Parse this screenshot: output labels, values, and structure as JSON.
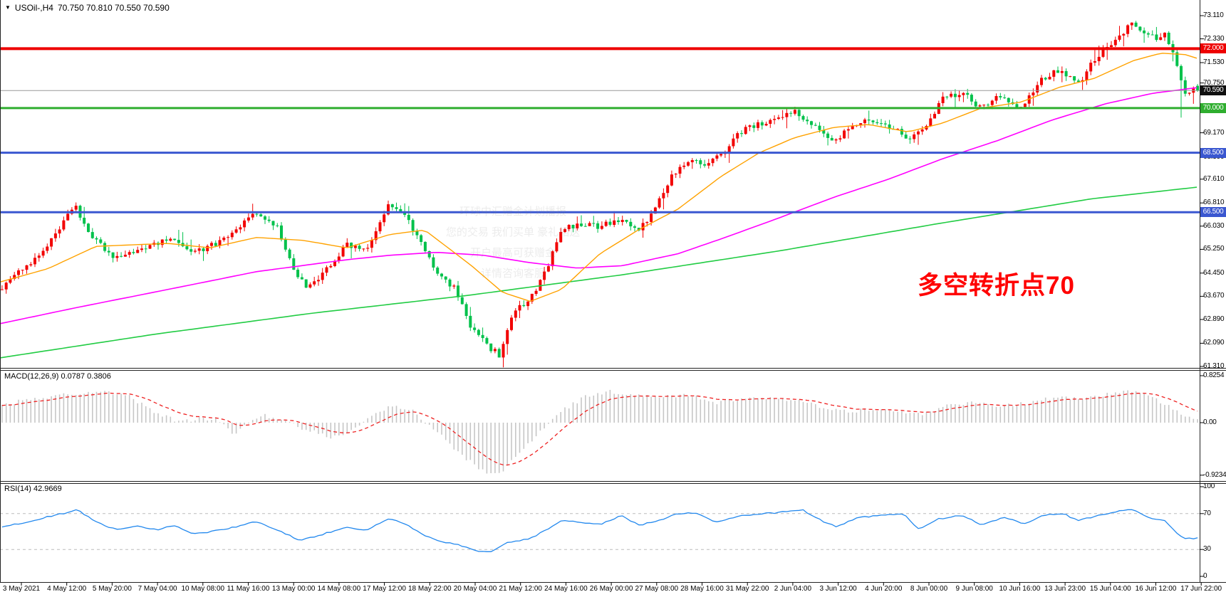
{
  "window": {
    "dropdown_icon": "▼",
    "symbol_period": "USOil-,H4",
    "ohlc_line": "70.750 70.810 70.550 70.590"
  },
  "colors": {
    "bull": "#f20000",
    "bear": "#00c14b",
    "ma_fast": "#ffa200",
    "ma_mid": "#ff00ff",
    "ma_slow": "#22cc44",
    "hline_red": "#ee0000",
    "hline_green": "#2fae2f",
    "hline_blue": "#3a57d0",
    "current_line": "#999999",
    "macd_bar": "#c6c6c6",
    "macd_signal": "#ee2222",
    "rsi_line": "#2288ee",
    "rsi_level": "#bbbbbb",
    "badge_red": "#ee0000",
    "badge_black": "#101010",
    "badge_green": "#2fae2f",
    "badge_blue": "#3a57d0",
    "annotation_red": "#ff0000",
    "axis_text": "#000000",
    "frame": "#222222"
  },
  "main_chart": {
    "price_ticks": [
      {
        "t": "73.110"
      },
      {
        "t": "72.330"
      },
      {
        "t": "71.530"
      },
      {
        "t": "70.750",
        "dy": -4
      },
      {
        "t": "69.170"
      },
      {
        "t": "68.390",
        "dy": 2
      },
      {
        "t": "67.610"
      },
      {
        "t": "66.810"
      },
      {
        "t": "66.030"
      },
      {
        "t": "65.250"
      },
      {
        "t": "64.450"
      },
      {
        "t": "63.670"
      },
      {
        "t": "62.890"
      },
      {
        "t": "62.090"
      },
      {
        "t": "61.310"
      }
    ],
    "hlines": [
      {
        "price": 72.0,
        "color_key": "hline_red",
        "width": 4,
        "badge": "72.000",
        "badge_key": "badge_red"
      },
      {
        "price": 70.0,
        "color_key": "hline_green",
        "width": 3,
        "badge": "70.000",
        "badge_key": "badge_green"
      },
      {
        "price": 68.5,
        "color_key": "hline_blue",
        "width": 3,
        "badge": "68.500",
        "badge_key": "badge_blue"
      },
      {
        "price": 66.5,
        "color_key": "hline_blue",
        "width": 3,
        "badge": "66.500",
        "badge_key": "badge_blue"
      }
    ],
    "current_price": {
      "price": 70.59,
      "badge": "70.590",
      "badge_key": "badge_black"
    }
  },
  "macd_panel": {
    "label": "MACD(12,26,9) 0.0787 0.3806",
    "ticks": [
      {
        "label": "0.8254",
        "value": 0.8254
      },
      {
        "label": "0.00",
        "value": 0
      },
      {
        "label": "-0.9234",
        "value": -0.9234
      }
    ]
  },
  "rsi_panel": {
    "label": "RSI(14) 42.9669",
    "ticks": [
      {
        "label": "100",
        "value": 100
      },
      {
        "label": "70",
        "value": 70
      },
      {
        "label": "30",
        "value": 30
      },
      {
        "label": "0",
        "value": 0
      }
    ],
    "level_lines": [
      70,
      30
    ]
  },
  "x_axis": {
    "labels": [
      "3 May 2021",
      "4 May 12:00",
      "5 May 20:00",
      "7 May 04:00",
      "10 May 08:00",
      "11 May 16:00",
      "13 May 00:00",
      "14 May 08:00",
      "17 May 12:00",
      "18 May 22:00",
      "20 May 04:00",
      "21 May 12:00",
      "24 May 16:00",
      "26 May 00:00",
      "27 May 08:00",
      "28 May 16:00",
      "31 May 22:00",
      "2 Jun 04:00",
      "3 Jun 12:00",
      "4 Jun 20:00",
      "8 Jun 00:00",
      "9 Jun 08:00",
      "10 Jun 16:00",
      "13 Jun 23:00",
      "15 Jun 04:00",
      "16 Jun 12:00",
      "17 Jun 22:00"
    ]
  },
  "annotation": {
    "text": "多空转折点70"
  },
  "watermark": {
    "lines": [
      "环球中汇赠金计划播报",
      "您的交易 我们买单 豪礼相送",
      "开户最高可获赠金",
      "详情咨询客服"
    ]
  },
  "chart_data": [
    {
      "type": "candlestick",
      "symbol": "USOil-",
      "timeframe": "H4",
      "title": "USOil-,H4 70.750 70.810 70.550 70.590",
      "ylim": [
        61.31,
        73.11
      ],
      "x_range": [
        "3 May 2021",
        "17 Jun 22:00"
      ],
      "grid": false,
      "up_color_convention": "red-up-green-down",
      "last_ohlc": {
        "open": 70.75,
        "high": 70.81,
        "low": 70.55,
        "close": 70.59
      },
      "horizontal_levels": [
        72.0,
        70.0,
        68.5,
        66.5
      ],
      "current_price_level": 70.59,
      "spikes": [
        {
          "frac": 0.984,
          "low": 69.68
        }
      ],
      "close_path": [
        [
          0,
          63.9
        ],
        [
          0.019,
          64.6
        ],
        [
          0.039,
          65.3
        ],
        [
          0.062,
          66.75
        ],
        [
          0.078,
          65.6
        ],
        [
          0.097,
          64.95
        ],
        [
          0.12,
          65.3
        ],
        [
          0.14,
          65.6
        ],
        [
          0.159,
          65.15
        ],
        [
          0.175,
          65.35
        ],
        [
          0.195,
          65.8
        ],
        [
          0.214,
          66.5
        ],
        [
          0.231,
          66.0
        ],
        [
          0.244,
          64.6
        ],
        [
          0.256,
          63.9
        ],
        [
          0.273,
          64.6
        ],
        [
          0.289,
          65.4
        ],
        [
          0.305,
          65.25
        ],
        [
          0.325,
          66.8
        ],
        [
          0.338,
          66.4
        ],
        [
          0.354,
          65.2
        ],
        [
          0.367,
          64.3
        ],
        [
          0.38,
          63.9
        ],
        [
          0.393,
          62.6
        ],
        [
          0.406,
          62.0
        ],
        [
          0.416,
          61.7
        ],
        [
          0.429,
          63.2
        ],
        [
          0.442,
          63.6
        ],
        [
          0.455,
          64.5
        ],
        [
          0.468,
          65.9
        ],
        [
          0.484,
          66.1
        ],
        [
          0.5,
          66.0
        ],
        [
          0.519,
          66.3
        ],
        [
          0.532,
          65.9
        ],
        [
          0.545,
          66.5
        ],
        [
          0.558,
          67.6
        ],
        [
          0.575,
          68.3
        ],
        [
          0.588,
          68.15
        ],
        [
          0.601,
          68.4
        ],
        [
          0.617,
          69.2
        ],
        [
          0.633,
          69.5
        ],
        [
          0.649,
          69.6
        ],
        [
          0.662,
          69.9
        ],
        [
          0.679,
          69.4
        ],
        [
          0.695,
          68.9
        ],
        [
          0.708,
          69.3
        ],
        [
          0.724,
          69.6
        ],
        [
          0.74,
          69.4
        ],
        [
          0.757,
          69.0
        ],
        [
          0.769,
          69.3
        ],
        [
          0.786,
          70.3
        ],
        [
          0.802,
          70.5
        ],
        [
          0.818,
          70.0
        ],
        [
          0.834,
          70.4
        ],
        [
          0.851,
          70.05
        ],
        [
          0.867,
          70.9
        ],
        [
          0.883,
          71.3
        ],
        [
          0.899,
          70.8
        ],
        [
          0.912,
          71.6
        ],
        [
          0.929,
          72.3
        ],
        [
          0.945,
          72.9
        ],
        [
          0.954,
          72.55
        ],
        [
          0.964,
          72.35
        ],
        [
          0.971,
          72.5
        ],
        [
          0.981,
          71.5
        ],
        [
          0.988,
          70.5
        ],
        [
          0.995,
          70.59
        ],
        [
          1,
          70.59
        ]
      ],
      "ma_fast_orange": [
        [
          0,
          64.15
        ],
        [
          0.04,
          64.6
        ],
        [
          0.08,
          65.35
        ],
        [
          0.14,
          65.45
        ],
        [
          0.175,
          65.3
        ],
        [
          0.214,
          65.65
        ],
        [
          0.253,
          65.55
        ],
        [
          0.289,
          65.3
        ],
        [
          0.325,
          65.75
        ],
        [
          0.354,
          65.9
        ],
        [
          0.393,
          64.7
        ],
        [
          0.419,
          63.8
        ],
        [
          0.442,
          63.5
        ],
        [
          0.468,
          63.9
        ],
        [
          0.5,
          65.1
        ],
        [
          0.532,
          65.9
        ],
        [
          0.565,
          66.6
        ],
        [
          0.601,
          67.7
        ],
        [
          0.633,
          68.5
        ],
        [
          0.662,
          69.0
        ],
        [
          0.695,
          69.35
        ],
        [
          0.724,
          69.45
        ],
        [
          0.757,
          69.2
        ],
        [
          0.786,
          69.5
        ],
        [
          0.818,
          70.0
        ],
        [
          0.851,
          70.2
        ],
        [
          0.883,
          70.7
        ],
        [
          0.912,
          71.0
        ],
        [
          0.945,
          71.6
        ],
        [
          0.968,
          71.85
        ],
        [
          0.988,
          71.8
        ],
        [
          1,
          71.65
        ]
      ],
      "ma_mid_magenta": [
        [
          0,
          62.75
        ],
        [
          0.065,
          63.3
        ],
        [
          0.14,
          63.9
        ],
        [
          0.214,
          64.5
        ],
        [
          0.289,
          64.9
        ],
        [
          0.325,
          65.05
        ],
        [
          0.364,
          65.15
        ],
        [
          0.403,
          65.05
        ],
        [
          0.442,
          64.8
        ],
        [
          0.481,
          64.62
        ],
        [
          0.519,
          64.7
        ],
        [
          0.565,
          65.1
        ],
        [
          0.601,
          65.6
        ],
        [
          0.649,
          66.3
        ],
        [
          0.695,
          67.0
        ],
        [
          0.74,
          67.6
        ],
        [
          0.786,
          68.3
        ],
        [
          0.831,
          68.9
        ],
        [
          0.877,
          69.6
        ],
        [
          0.922,
          70.15
        ],
        [
          0.961,
          70.5
        ],
        [
          1,
          70.7
        ]
      ],
      "ma_slow_green": [
        [
          0,
          61.6
        ],
        [
          0.13,
          62.4
        ],
        [
          0.26,
          63.1
        ],
        [
          0.39,
          63.7
        ],
        [
          0.52,
          64.4
        ],
        [
          0.65,
          65.2
        ],
        [
          0.78,
          66.1
        ],
        [
          0.91,
          66.95
        ],
        [
          1,
          67.35
        ]
      ]
    },
    {
      "type": "bar",
      "name": "MACD(12,26,9)",
      "current_macd": 0.0787,
      "current_signal": 0.3806,
      "ylim": [
        -0.9234,
        0.8254
      ],
      "values_path": [
        [
          0,
          0.3
        ],
        [
          0.026,
          0.42
        ],
        [
          0.058,
          0.5
        ],
        [
          0.084,
          0.55
        ],
        [
          0.104,
          0.5
        ],
        [
          0.13,
          0.18
        ],
        [
          0.149,
          0.02
        ],
        [
          0.169,
          0.08
        ],
        [
          0.185,
          0.02
        ],
        [
          0.195,
          -0.2
        ],
        [
          0.205,
          -0.05
        ],
        [
          0.218,
          0.15
        ],
        [
          0.234,
          0.05
        ],
        [
          0.253,
          -0.1
        ],
        [
          0.276,
          -0.26
        ],
        [
          0.295,
          -0.12
        ],
        [
          0.312,
          0.15
        ],
        [
          0.328,
          0.32
        ],
        [
          0.344,
          0.2
        ],
        [
          0.364,
          -0.15
        ],
        [
          0.383,
          -0.55
        ],
        [
          0.403,
          -0.85
        ],
        [
          0.416,
          -0.92
        ],
        [
          0.432,
          -0.55
        ],
        [
          0.451,
          -0.15
        ],
        [
          0.468,
          0.2
        ],
        [
          0.487,
          0.45
        ],
        [
          0.506,
          0.55
        ],
        [
          0.529,
          0.5
        ],
        [
          0.552,
          0.45
        ],
        [
          0.575,
          0.48
        ],
        [
          0.597,
          0.35
        ],
        [
          0.62,
          0.42
        ],
        [
          0.643,
          0.45
        ],
        [
          0.662,
          0.4
        ],
        [
          0.685,
          0.28
        ],
        [
          0.708,
          0.18
        ],
        [
          0.727,
          0.25
        ],
        [
          0.75,
          0.2
        ],
        [
          0.769,
          0.15
        ],
        [
          0.789,
          0.3
        ],
        [
          0.812,
          0.35
        ],
        [
          0.834,
          0.3
        ],
        [
          0.857,
          0.35
        ],
        [
          0.88,
          0.45
        ],
        [
          0.903,
          0.4
        ],
        [
          0.922,
          0.5
        ],
        [
          0.942,
          0.58
        ],
        [
          0.961,
          0.45
        ],
        [
          0.977,
          0.25
        ],
        [
          0.994,
          0.08
        ],
        [
          1,
          0.08
        ]
      ]
    },
    {
      "type": "line",
      "name": "RSI(14)",
      "current": 42.9669,
      "ylim": [
        0,
        100
      ],
      "levels": [
        70,
        30
      ],
      "values_path": [
        [
          0,
          54
        ],
        [
          0.026,
          62
        ],
        [
          0.052,
          70
        ],
        [
          0.065,
          74
        ],
        [
          0.078,
          62
        ],
        [
          0.097,
          52
        ],
        [
          0.114,
          56
        ],
        [
          0.13,
          52
        ],
        [
          0.146,
          57
        ],
        [
          0.162,
          47
        ],
        [
          0.175,
          50
        ],
        [
          0.195,
          55
        ],
        [
          0.214,
          61
        ],
        [
          0.231,
          52
        ],
        [
          0.25,
          40
        ],
        [
          0.269,
          47
        ],
        [
          0.289,
          55
        ],
        [
          0.305,
          52
        ],
        [
          0.325,
          64
        ],
        [
          0.338,
          58
        ],
        [
          0.354,
          45
        ],
        [
          0.37,
          38
        ],
        [
          0.383,
          35
        ],
        [
          0.396,
          29
        ],
        [
          0.409,
          27
        ],
        [
          0.422,
          38
        ],
        [
          0.442,
          42
        ],
        [
          0.455,
          52
        ],
        [
          0.468,
          62
        ],
        [
          0.484,
          60
        ],
        [
          0.5,
          58
        ],
        [
          0.519,
          68
        ],
        [
          0.532,
          57
        ],
        [
          0.549,
          62
        ],
        [
          0.565,
          70
        ],
        [
          0.581,
          71
        ],
        [
          0.597,
          60
        ],
        [
          0.617,
          67
        ],
        [
          0.636,
          70
        ],
        [
          0.656,
          72
        ],
        [
          0.669,
          74
        ],
        [
          0.685,
          62
        ],
        [
          0.698,
          55
        ],
        [
          0.714,
          65
        ],
        [
          0.734,
          68
        ],
        [
          0.753,
          70
        ],
        [
          0.766,
          52
        ],
        [
          0.782,
          64
        ],
        [
          0.802,
          68
        ],
        [
          0.818,
          58
        ],
        [
          0.838,
          66
        ],
        [
          0.854,
          58
        ],
        [
          0.87,
          68
        ],
        [
          0.886,
          70
        ],
        [
          0.899,
          62
        ],
        [
          0.916,
          68
        ],
        [
          0.935,
          73
        ],
        [
          0.945,
          75
        ],
        [
          0.958,
          65
        ],
        [
          0.971,
          62
        ],
        [
          0.981,
          48
        ],
        [
          0.988,
          42
        ],
        [
          1,
          43
        ]
      ]
    }
  ]
}
